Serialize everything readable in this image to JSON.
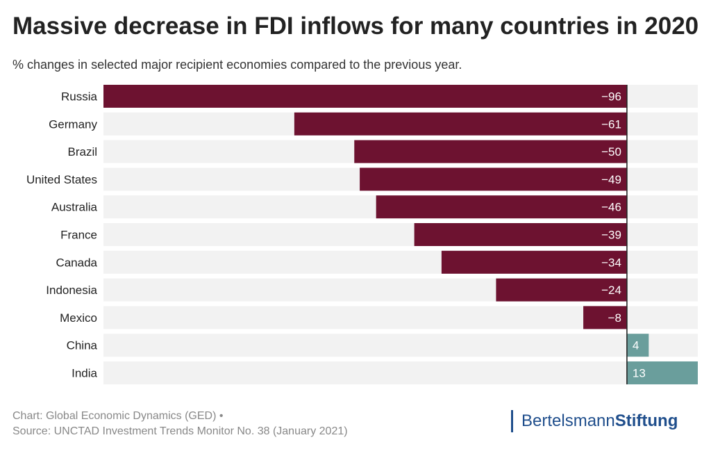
{
  "title": "Massive decrease in FDI inflows for many countries in 2020",
  "subtitle": "% changes in selected major recipient economies compared to the previous year.",
  "footer": {
    "line1": "Chart: Global Economic Dynamics (GED) •",
    "line2": "Source: UNCTAD Investment Trends Monitor No. 38 (January 2021)"
  },
  "brand": {
    "part1": "Bertelsmann",
    "part2": "Stiftung"
  },
  "colors": {
    "negative": "#6d1230",
    "positive": "#6a9e9c",
    "track": "#f2f2f2",
    "axis": "#222222"
  },
  "chart_data": {
    "type": "bar",
    "orientation": "horizontal",
    "categories": [
      "Russia",
      "Germany",
      "Brazil",
      "United States",
      "Australia",
      "France",
      "Canada",
      "Indonesia",
      "Mexico",
      "China",
      "India"
    ],
    "values": [
      -96,
      -61,
      -50,
      -49,
      -46,
      -39,
      -34,
      -24,
      -8,
      4,
      13
    ],
    "value_labels": [
      "−96",
      "−61",
      "−50",
      "−49",
      "−46",
      "−39",
      "−34",
      "−24",
      "−8",
      "4",
      "13"
    ],
    "xlim": [
      -96,
      13
    ],
    "xlabel": "",
    "ylabel": "",
    "grid": false,
    "legend": "none"
  }
}
